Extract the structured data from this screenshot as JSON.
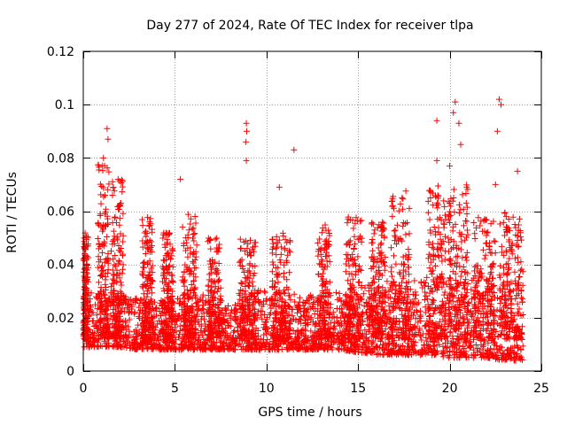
{
  "chart_data": {
    "type": "scatter",
    "title": "Day 277 of 2024, Rate Of TEC Index for receiver tlpa",
    "xlabel": "GPS time / hours",
    "ylabel": "ROTI / TECUs",
    "xlim": [
      0,
      25
    ],
    "ylim": [
      0,
      0.12
    ],
    "x_ticks": [
      0,
      5,
      10,
      15,
      20,
      25
    ],
    "y_ticks": [
      0,
      0.02,
      0.04,
      0.06,
      0.08,
      0.1,
      0.12
    ],
    "x_tick_labels": [
      "0",
      "5",
      "10",
      "15",
      "20",
      "25"
    ],
    "y_tick_labels": [
      "0",
      "0.02",
      "0.04",
      "0.06",
      "0.08",
      "0.1",
      "0.12"
    ],
    "grid": true,
    "marker": "plus",
    "color": "#ff0000",
    "baseline_envelope": {
      "x": [
        0,
        1,
        2,
        3,
        4,
        5,
        6,
        7,
        8,
        9,
        10,
        11,
        12,
        13,
        14,
        15,
        16,
        17,
        18,
        19,
        20,
        21,
        22,
        23,
        24
      ],
      "low": [
        0.009,
        0.009,
        0.009,
        0.008,
        0.008,
        0.008,
        0.008,
        0.008,
        0.008,
        0.008,
        0.008,
        0.008,
        0.008,
        0.008,
        0.008,
        0.007,
        0.006,
        0.006,
        0.006,
        0.006,
        0.005,
        0.005,
        0.005,
        0.004,
        0.004
      ],
      "high": [
        0.028,
        0.032,
        0.03,
        0.027,
        0.026,
        0.028,
        0.03,
        0.028,
        0.026,
        0.028,
        0.032,
        0.03,
        0.028,
        0.03,
        0.03,
        0.032,
        0.034,
        0.034,
        0.034,
        0.036,
        0.038,
        0.036,
        0.036,
        0.034,
        0.032
      ]
    },
    "activity_bursts": [
      {
        "x_range": [
          0.0,
          0.3
        ],
        "y_max": 0.052
      },
      {
        "x_range": [
          0.8,
          1.4
        ],
        "y_max": 0.078
      },
      {
        "x_range": [
          1.5,
          2.2
        ],
        "y_max": 0.072
      },
      {
        "x_range": [
          3.2,
          3.8
        ],
        "y_max": 0.058
      },
      {
        "x_range": [
          4.3,
          4.9
        ],
        "y_max": 0.052
      },
      {
        "x_range": [
          5.4,
          6.2
        ],
        "y_max": 0.059
      },
      {
        "x_range": [
          6.8,
          7.5
        ],
        "y_max": 0.05
      },
      {
        "x_range": [
          8.5,
          9.4
        ],
        "y_max": 0.05
      },
      {
        "x_range": [
          10.3,
          11.3
        ],
        "y_max": 0.052
      },
      {
        "x_range": [
          12.8,
          13.5
        ],
        "y_max": 0.055
      },
      {
        "x_range": [
          14.3,
          15.2
        ],
        "y_max": 0.058
      },
      {
        "x_range": [
          15.7,
          16.5
        ],
        "y_max": 0.056
      },
      {
        "x_range": [
          16.8,
          17.8
        ],
        "y_max": 0.068
      },
      {
        "x_range": [
          18.8,
          19.8
        ],
        "y_max": 0.07
      },
      {
        "x_range": [
          19.9,
          21.0
        ],
        "y_max": 0.07
      },
      {
        "x_range": [
          21.3,
          22.5
        ],
        "y_max": 0.058
      },
      {
        "x_range": [
          22.7,
          24.0
        ],
        "y_max": 0.06
      }
    ],
    "notable_points": [
      {
        "x": 1.3,
        "y": 0.091
      },
      {
        "x": 1.35,
        "y": 0.087
      },
      {
        "x": 1.1,
        "y": 0.08
      },
      {
        "x": 1.9,
        "y": 0.072
      },
      {
        "x": 5.3,
        "y": 0.072
      },
      {
        "x": 8.9,
        "y": 0.093
      },
      {
        "x": 8.92,
        "y": 0.09
      },
      {
        "x": 8.88,
        "y": 0.086
      },
      {
        "x": 8.9,
        "y": 0.079
      },
      {
        "x": 10.7,
        "y": 0.069
      },
      {
        "x": 11.5,
        "y": 0.083
      },
      {
        "x": 19.3,
        "y": 0.094
      },
      {
        "x": 19.3,
        "y": 0.079
      },
      {
        "x": 20.3,
        "y": 0.101
      },
      {
        "x": 20.2,
        "y": 0.097
      },
      {
        "x": 20.5,
        "y": 0.093
      },
      {
        "x": 20.6,
        "y": 0.085
      },
      {
        "x": 20.0,
        "y": 0.077
      },
      {
        "x": 22.7,
        "y": 0.102
      },
      {
        "x": 22.8,
        "y": 0.1
      },
      {
        "x": 22.6,
        "y": 0.09
      },
      {
        "x": 22.5,
        "y": 0.07
      },
      {
        "x": 23.7,
        "y": 0.075
      }
    ]
  }
}
